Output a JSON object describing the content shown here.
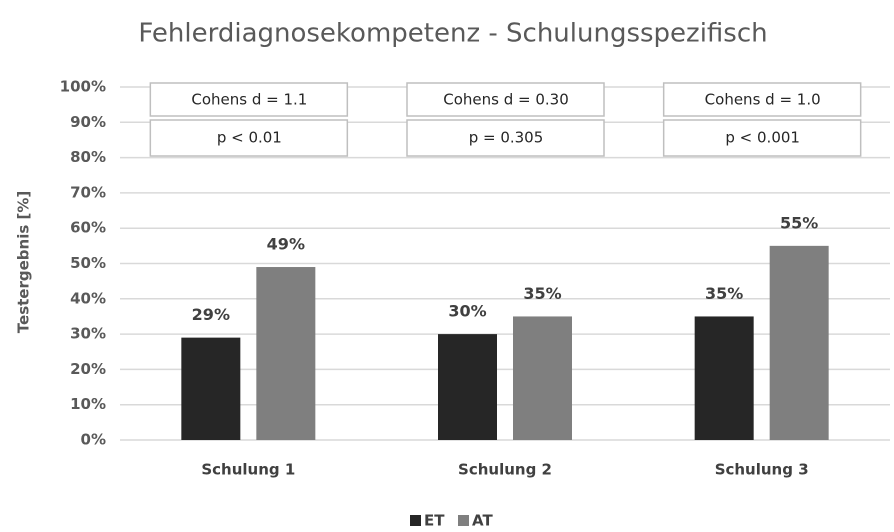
{
  "chart_data": {
    "type": "bar",
    "title": "Fehlerdiagnosekompetenz - Schulungsspezifisch",
    "y_label": "Testergebnis [%]",
    "categories": [
      "Schulung 1",
      "Schulung 2",
      "Schulung 3"
    ],
    "series": [
      {
        "name": "ET",
        "color": "#262626",
        "values": [
          29,
          30,
          35
        ],
        "value_labels": [
          "29%",
          "30%",
          "35%"
        ]
      },
      {
        "name": "AT",
        "color": "#7f7f7f",
        "values": [
          49,
          35,
          55
        ],
        "value_labels": [
          "49%",
          "35%",
          "55%"
        ]
      }
    ],
    "annotations": [
      {
        "effect": "Cohens d = 1.1",
        "p": "p < 0.01"
      },
      {
        "effect": "Cohens d = 0.30",
        "p": "p = 0.305"
      },
      {
        "effect": "Cohens d = 1.0",
        "p": "p < 0.001"
      }
    ],
    "ylim": [
      0,
      100
    ],
    "yticks": [
      {
        "value": 0,
        "label": "0%"
      },
      {
        "value": 10,
        "label": "10%"
      },
      {
        "value": 20,
        "label": "20%"
      },
      {
        "value": 30,
        "label": "30%"
      },
      {
        "value": 40,
        "label": "40%"
      },
      {
        "value": 50,
        "label": "50%"
      },
      {
        "value": 60,
        "label": "60%"
      },
      {
        "value": 70,
        "label": "70%"
      },
      {
        "value": 80,
        "label": "80%"
      },
      {
        "value": 90,
        "label": "90%"
      },
      {
        "value": 100,
        "label": "100%"
      }
    ],
    "grid": true,
    "legend": "bottom"
  }
}
